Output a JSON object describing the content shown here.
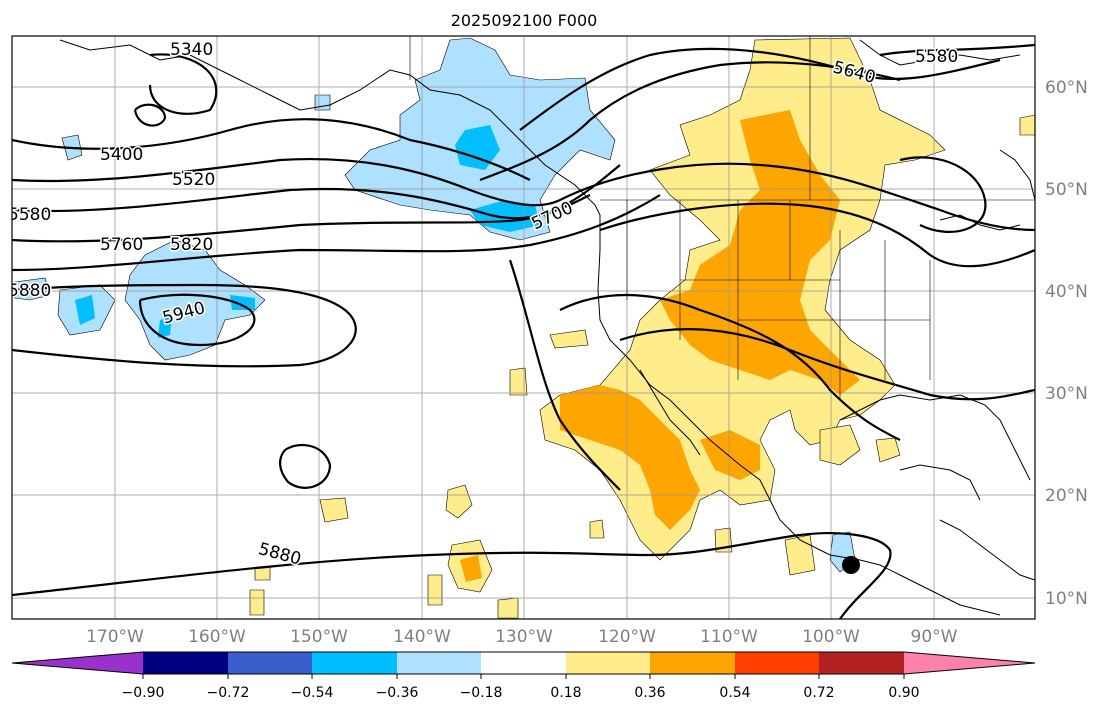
{
  "title": "2025092100 F000",
  "map": {
    "lat_labels": [
      "60°N",
      "50°N",
      "40°N",
      "30°N",
      "20°N",
      "10°N"
    ],
    "lon_labels": [
      "170°W",
      "160°W",
      "150°W",
      "140°W",
      "130°W",
      "120°W",
      "110°W",
      "100°W",
      "90°W"
    ],
    "contour_labels": [
      "5340",
      "5400",
      "5520",
      "5580",
      "5760",
      "5820",
      "5940",
      "5700",
      "5640",
      "5580",
      "5880",
      "5880"
    ]
  },
  "colorbar": {
    "tick_labels": [
      "−0.90",
      "−0.72",
      "−0.54",
      "−0.36",
      "−0.18",
      "0.18",
      "0.36",
      "0.54",
      "0.72",
      "0.90"
    ],
    "colors": [
      "#9932cc",
      "#000080",
      "#3a5fcd",
      "#00bfff",
      "#aee0ff",
      "#ffffff",
      "#ffec8b",
      "#ffa500",
      "#ff3e00",
      "#b22222",
      "#ff82ab"
    ]
  },
  "colors": {
    "neg_light": "#aee0ff",
    "neg_mid": "#00bfff",
    "pos_light": "#ffec8b",
    "pos_mid": "#ffa500"
  },
  "marker": {
    "icon": "black-dot-icon"
  }
}
